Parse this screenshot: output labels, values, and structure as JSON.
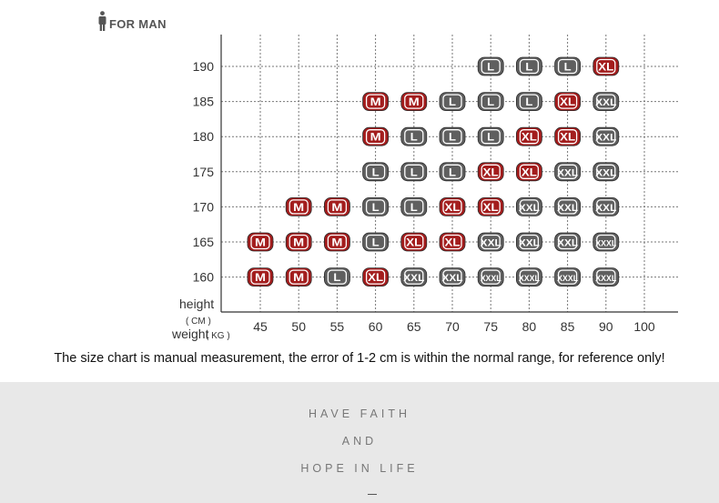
{
  "header": {
    "title": "FOR MAN"
  },
  "chart_data": {
    "type": "table",
    "y_axis": {
      "label": "height",
      "unit": "( CM )",
      "values": [
        190,
        185,
        180,
        175,
        170,
        165,
        160
      ]
    },
    "x_axis": {
      "label": "weight",
      "unit": "( KG )",
      "values": [
        45,
        50,
        55,
        60,
        65,
        70,
        75,
        80,
        85,
        90,
        100
      ]
    },
    "grid": "dotted",
    "rows": [
      {
        "height": 190,
        "cells": [
          {
            "weight": 75,
            "size": "L"
          },
          {
            "weight": 80,
            "size": "L"
          },
          {
            "weight": 85,
            "size": "L"
          },
          {
            "weight": 90,
            "size": "XL"
          }
        ]
      },
      {
        "height": 185,
        "cells": [
          {
            "weight": 60,
            "size": "M"
          },
          {
            "weight": 65,
            "size": "M"
          },
          {
            "weight": 70,
            "size": "L"
          },
          {
            "weight": 75,
            "size": "L"
          },
          {
            "weight": 80,
            "size": "L"
          },
          {
            "weight": 85,
            "size": "XL"
          },
          {
            "weight": 90,
            "size": "XXL"
          }
        ]
      },
      {
        "height": 180,
        "cells": [
          {
            "weight": 60,
            "size": "M"
          },
          {
            "weight": 65,
            "size": "L"
          },
          {
            "weight": 70,
            "size": "L"
          },
          {
            "weight": 75,
            "size": "L"
          },
          {
            "weight": 80,
            "size": "XL"
          },
          {
            "weight": 85,
            "size": "XL"
          },
          {
            "weight": 90,
            "size": "XXL"
          }
        ]
      },
      {
        "height": 175,
        "cells": [
          {
            "weight": 60,
            "size": "L"
          },
          {
            "weight": 65,
            "size": "L"
          },
          {
            "weight": 70,
            "size": "L"
          },
          {
            "weight": 75,
            "size": "XL"
          },
          {
            "weight": 80,
            "size": "XL"
          },
          {
            "weight": 85,
            "size": "XXL"
          },
          {
            "weight": 90,
            "size": "XXL"
          }
        ]
      },
      {
        "height": 170,
        "cells": [
          {
            "weight": 50,
            "size": "M"
          },
          {
            "weight": 55,
            "size": "M"
          },
          {
            "weight": 60,
            "size": "L"
          },
          {
            "weight": 65,
            "size": "L"
          },
          {
            "weight": 70,
            "size": "XL"
          },
          {
            "weight": 75,
            "size": "XL"
          },
          {
            "weight": 80,
            "size": "XXL"
          },
          {
            "weight": 85,
            "size": "XXL"
          },
          {
            "weight": 90,
            "size": "XXL"
          }
        ]
      },
      {
        "height": 165,
        "cells": [
          {
            "weight": 45,
            "size": "M"
          },
          {
            "weight": 50,
            "size": "M"
          },
          {
            "weight": 55,
            "size": "M"
          },
          {
            "weight": 60,
            "size": "L"
          },
          {
            "weight": 65,
            "size": "XL"
          },
          {
            "weight": 70,
            "size": "XL"
          },
          {
            "weight": 75,
            "size": "XXL"
          },
          {
            "weight": 80,
            "size": "XXL"
          },
          {
            "weight": 85,
            "size": "XXL"
          },
          {
            "weight": 90,
            "size": "XXXL"
          }
        ]
      },
      {
        "height": 160,
        "cells": [
          {
            "weight": 45,
            "size": "M"
          },
          {
            "weight": 50,
            "size": "M"
          },
          {
            "weight": 55,
            "size": "L"
          },
          {
            "weight": 60,
            "size": "XL"
          },
          {
            "weight": 65,
            "size": "XXL"
          },
          {
            "weight": 70,
            "size": "XXL"
          },
          {
            "weight": 75,
            "size": "XXXL"
          },
          {
            "weight": 80,
            "size": "XXXL"
          },
          {
            "weight": 85,
            "size": "XXXL"
          },
          {
            "weight": 90,
            "size": "XXXL"
          }
        ]
      }
    ],
    "size_colors": {
      "M": "#a31d1d",
      "L": "#5f5f5f",
      "XL": "#a31d1d",
      "XXL": "#5f5f5f",
      "XXXL": "#5f5f5f"
    }
  },
  "note": "The size chart is manual measurement, the error of 1-2 cm is within the normal range, for reference only!",
  "footer": {
    "line1": "HAVE FAITH",
    "line2": "AND",
    "line3": "HOPE IN LIFE"
  }
}
